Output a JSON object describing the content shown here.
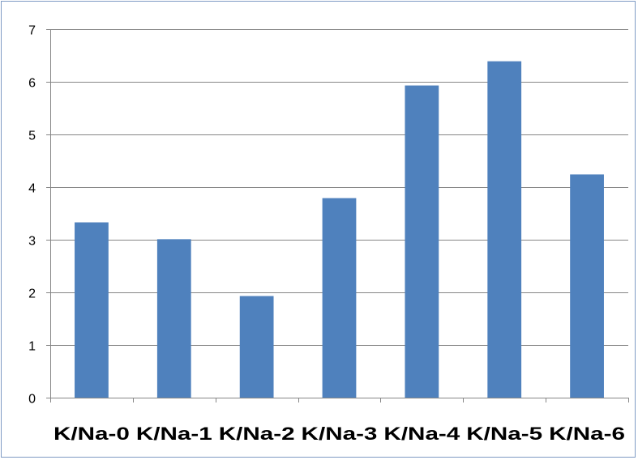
{
  "chart_data": {
    "type": "bar",
    "categories": [
      "K/Na-0",
      "K/Na-1",
      "K/Na-2",
      "K/Na-3",
      "K/Na-4",
      "K/Na-5",
      "K/Na-6"
    ],
    "values": [
      3.33,
      3.01,
      1.93,
      3.79,
      5.93,
      6.39,
      4.24
    ],
    "title": "",
    "xlabel": "",
    "ylabel": "",
    "ylim": [
      0,
      7
    ],
    "yticks": [
      "0",
      "1",
      "2",
      "3",
      "4",
      "5",
      "6",
      "7"
    ],
    "grid": true,
    "legend": "none",
    "colors": {
      "bar": "#4f81bd",
      "grid": "#868686",
      "axis": "#868686",
      "frame": "#7f9bc4"
    }
  }
}
